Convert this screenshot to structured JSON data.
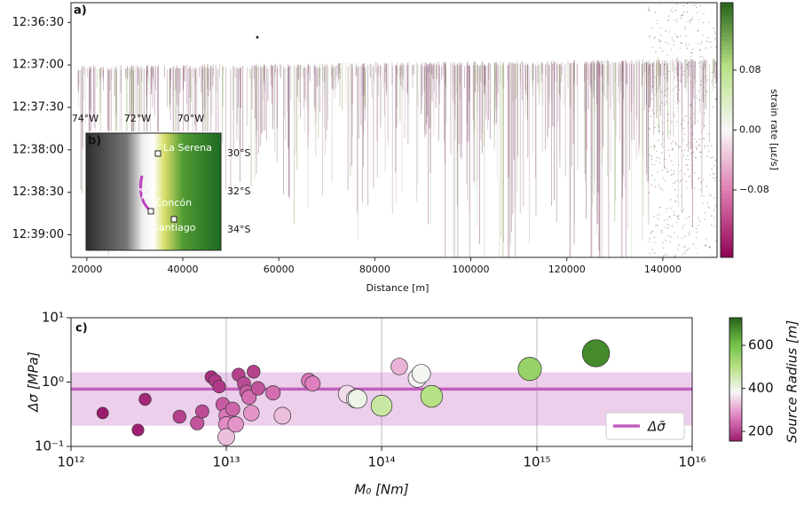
{
  "chart_data": [
    {
      "type": "image",
      "panel": "a)",
      "x_label": "Distance [m]",
      "xlim": [
        16700,
        151300
      ],
      "xticks": [
        20000,
        40000,
        60000,
        80000,
        100000,
        120000,
        140000
      ],
      "ylim": [
        "12:36:16",
        "12:39:16"
      ],
      "yticks": [
        "12:36:30",
        "12:37:00",
        "12:37:30",
        "12:38:00",
        "12:38:30",
        "12:39:00"
      ],
      "colorbar": {
        "label": "strain rate [με/s]",
        "lim": [
          -0.17,
          0.17
        ],
        "ticks": [
          0.08,
          {
            "value": 0,
            "label": "0.00"
          },
          {
            "value": -0.08,
            "label": "−0.08"
          }
        ],
        "colormap": [
          "#8e0152",
          "#de77ae",
          "#f7f7f7",
          "#b8e186",
          "#276419"
        ]
      },
      "inset": {
        "panel": "b)",
        "lon_labels": [
          "74°W",
          "72°W",
          "70°W"
        ],
        "lat_labels": [
          "30°S",
          "32°S",
          "34°S"
        ],
        "places": [
          "La Serena",
          "Concón",
          "Santiago"
        ]
      }
    },
    {
      "type": "scatter",
      "panel": "c)",
      "x_label": "M₀ [Nm]",
      "y_label": "Δσ [MPa]",
      "log_scale": true,
      "xlim": [
        1000000000000.0,
        1e+16
      ],
      "xticks": [
        {
          "value": 1000000000000.0,
          "label": "10¹²"
        },
        {
          "value": 10000000000000.0,
          "label": "10¹³"
        },
        {
          "value": 100000000000000.0,
          "label": "10¹⁴"
        },
        {
          "value": 1000000000000000.0,
          "label": "10¹⁵"
        },
        {
          "value": 1e+16,
          "label": "10¹⁶"
        }
      ],
      "ylim": [
        0.1,
        10
      ],
      "yticks": [
        {
          "value": 0.1,
          "label": "10⁻¹"
        },
        {
          "value": 1,
          "label": "10⁰"
        },
        {
          "value": 10,
          "label": "10¹"
        }
      ],
      "grid_x": true,
      "legend_loc": "lower right",
      "mean_line": {
        "name": "Δσ̄",
        "value": 0.78,
        "band": [
          0.21,
          1.42
        ],
        "color": "#c35fbf"
      },
      "points": {
        "x": [
          1600000000000.0,
          2700000000000.0,
          3000000000000.0,
          5000000000000.0,
          6500000000000.0,
          7000000000000.0,
          8000000000000.0,
          8500000000000.0,
          9000000000000.0,
          9500000000000.0,
          10000000000000.0,
          10000000000000.0,
          10000000000000.0,
          11000000000000.0,
          11500000000000.0,
          12000000000000.0,
          13000000000000.0,
          13500000000000.0,
          14000000000000.0,
          14500000000000.0,
          15000000000000.0,
          16000000000000.0,
          20000000000000.0,
          23000000000000.0,
          34000000000000.0,
          36000000000000.0,
          60000000000000.0,
          68000000000000.0,
          70000000000000.0,
          100000000000000.0,
          130000000000000.0,
          170000000000000.0,
          180000000000000.0,
          210000000000000.0,
          900000000000000.0,
          2400000000000000.0
        ],
        "y": [
          0.33,
          0.18,
          0.54,
          0.29,
          0.23,
          0.35,
          1.2,
          1.05,
          0.85,
          0.45,
          0.3,
          0.22,
          0.14,
          0.38,
          0.22,
          1.3,
          0.95,
          0.7,
          0.58,
          0.33,
          1.45,
          0.8,
          0.68,
          0.3,
          1.05,
          0.95,
          0.65,
          0.55,
          0.55,
          0.43,
          1.75,
          1.15,
          1.35,
          0.6,
          1.6,
          2.8
        ],
        "radius": [
          150,
          160,
          170,
          200,
          220,
          210,
          180,
          190,
          190,
          230,
          260,
          280,
          330,
          240,
          290,
          200,
          210,
          230,
          250,
          290,
          200,
          220,
          250,
          330,
          260,
          270,
          360,
          380,
          400,
          470,
          320,
          380,
          390,
          500,
          550,
          680
        ]
      },
      "colorbar": {
        "label": "Source Radius [m]",
        "lim": [
          155,
          728
        ],
        "ticks": [
          200,
          400,
          600
        ],
        "colormap": [
          "#9b1b6e",
          "#e07fbf",
          "#f7f7f7",
          "#b8e186",
          "#6fbf45",
          "#276419"
        ]
      }
    }
  ]
}
